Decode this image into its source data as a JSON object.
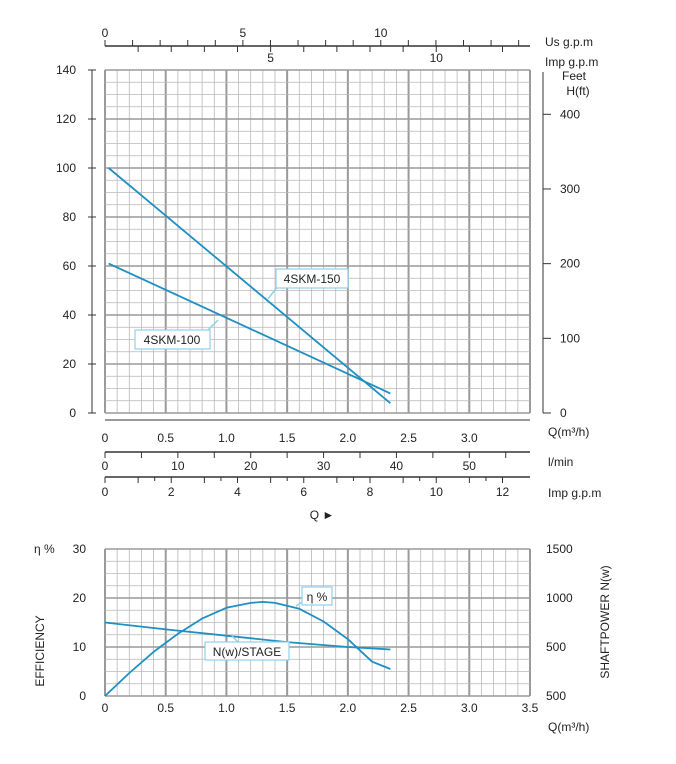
{
  "colors": {
    "curve": "#1f8fc4",
    "grid_minor": "#b8b8b8",
    "grid_major": "#9a9a9a",
    "axis": "#333333",
    "text": "#222222"
  },
  "chart_data": [
    {
      "type": "line",
      "id": "head",
      "xlabel": "Q(m³/h)",
      "xlim": [
        0,
        3.5
      ],
      "ylim": [
        0,
        140
      ],
      "x_ticks": [
        "0",
        "0.5",
        "1.0",
        "1.5",
        "2.0",
        "2.5",
        "3.0"
      ],
      "y_ticks": [
        "0",
        "20",
        "40",
        "60",
        "80",
        "100",
        "120",
        "140"
      ],
      "right_axis": {
        "title_line1": "Feet",
        "title_line2": "H(ft)",
        "ticks": [
          "0",
          "100",
          "200",
          "300",
          "400"
        ]
      },
      "top_axes": [
        {
          "label": "Us g.p.m",
          "ticks": [
            "0",
            "5",
            "10"
          ]
        },
        {
          "label": "Imp g.p.m",
          "ticks": [
            "5",
            "10"
          ]
        }
      ],
      "bottom_axes": [
        {
          "label": "l/min",
          "ticks": [
            "0",
            "10",
            "20",
            "30",
            "40",
            "50"
          ]
        },
        {
          "label": "Imp g.p.m",
          "ticks": [
            "0",
            "2",
            "4",
            "6",
            "8",
            "10",
            "12"
          ]
        }
      ],
      "q_label": "Q ►",
      "series": [
        {
          "name": "4SKM-150",
          "x": [
            0.03,
            2.35
          ],
          "y": [
            100,
            4
          ]
        },
        {
          "name": "4SKM-100",
          "x": [
            0.03,
            2.35
          ],
          "y": [
            61,
            8
          ]
        }
      ]
    },
    {
      "type": "line",
      "id": "efficiency",
      "xlabel": "Q(m³/h)",
      "xlim": [
        0,
        3.5
      ],
      "x_ticks": [
        "0",
        "0.5",
        "1.0",
        "1.5",
        "2.0",
        "2.5",
        "3.0",
        "3.5"
      ],
      "left_axis": {
        "title": "EFFICIENCY",
        "unit": "η %",
        "ylim": [
          0,
          30
        ],
        "ticks": [
          "0",
          "10",
          "20",
          "30"
        ]
      },
      "right_axis": {
        "title": "SHAFTPOWER N(w)",
        "ticks": [
          "500",
          "500",
          "1000",
          "1500"
        ]
      },
      "series": [
        {
          "name": "η %",
          "x": [
            0.0,
            0.2,
            0.4,
            0.6,
            0.8,
            1.0,
            1.2,
            1.3,
            1.4,
            1.6,
            1.8,
            2.0,
            2.2,
            2.35
          ],
          "y": [
            0.0,
            4.7,
            9.0,
            12.7,
            15.8,
            18.0,
            19.0,
            19.2,
            19.0,
            17.8,
            15.2,
            11.6,
            7.0,
            5.5
          ]
        },
        {
          "name": "N(w)/STAGE",
          "x": [
            0.0,
            0.5,
            1.0,
            1.5,
            2.0,
            2.35
          ],
          "y": [
            15.0,
            13.6,
            12.3,
            11.0,
            10.0,
            9.5
          ]
        }
      ]
    }
  ]
}
